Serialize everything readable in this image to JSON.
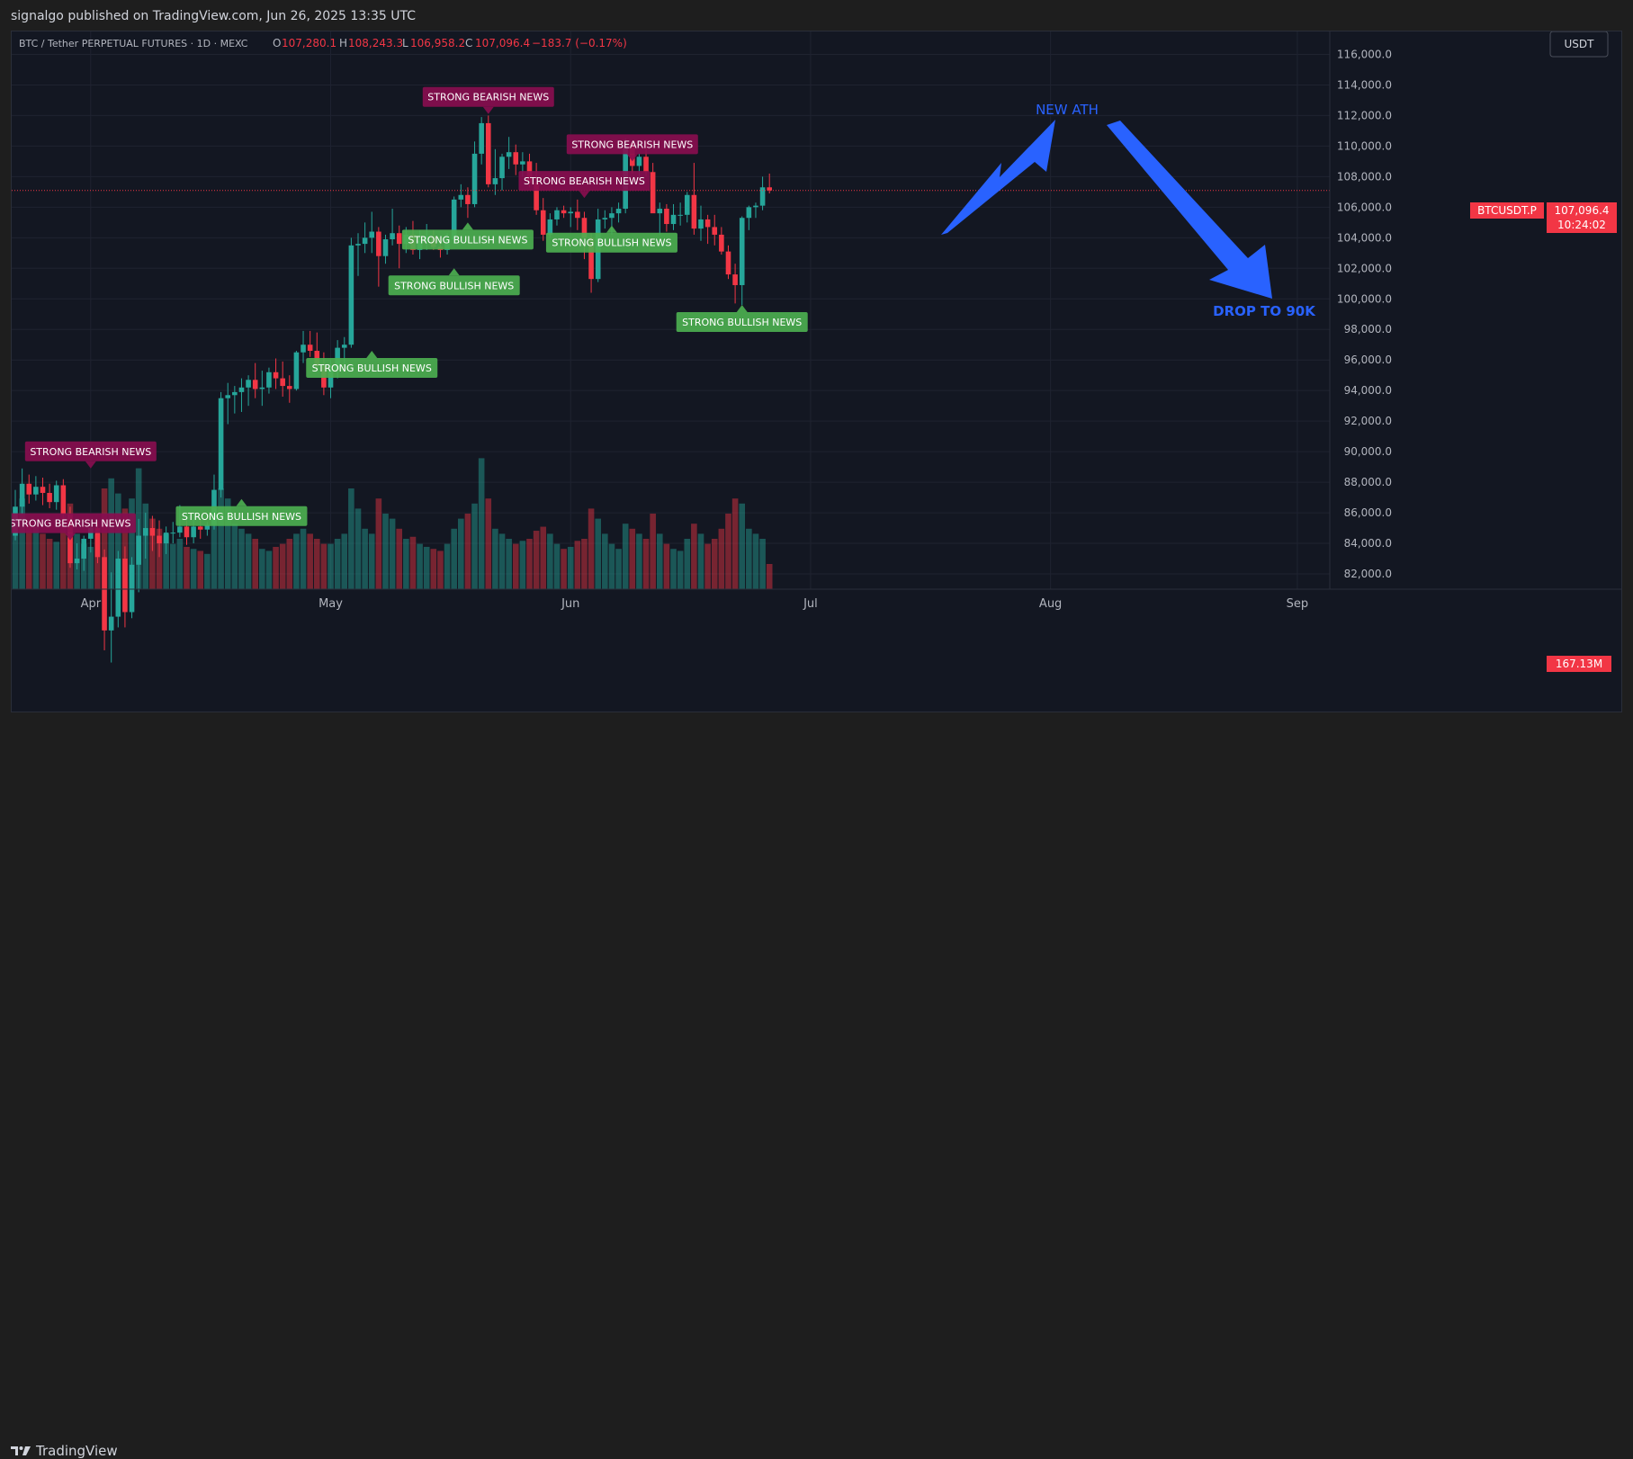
{
  "header": {
    "published": "signalgo published on TradingView.com, Jun 26, 2025 13:35 UTC"
  },
  "footer": {
    "brand": "TradingView"
  },
  "legend": {
    "symbol": "BTC / Tether PERPETUAL FUTURES · 1D · MEXC",
    "o_label": "O",
    "o": "107,280.1",
    "h_label": "H",
    "h": "108,243.3",
    "l_label": "L",
    "l": "106,958.2",
    "c_label": "C",
    "c": "107,096.4",
    "change": "−183.7 (−0.17%)"
  },
  "currency_button": "USDT",
  "price_tags": {
    "symbol": "BTCUSDT.P",
    "price": "107,096.4",
    "countdown": "10:24:02",
    "volume": "167.13M"
  },
  "annotations": {
    "ath": "NEW ATH",
    "drop": "DROP TO 90K"
  },
  "signal_bearish": "STRONG BEARISH NEWS",
  "signal_bullish": "STRONG BULLISH NEWS",
  "colors": {
    "up": "#26a69a",
    "down": "#f23645",
    "bg": "#131722",
    "arrow": "#2962ff",
    "label_bull": "#4caf50",
    "label_bear": "#880e4f"
  },
  "chart_data": {
    "type": "candlestick",
    "ylim": [
      81000,
      117500
    ],
    "y_ticks": [
      "82,000.0",
      "84,000.0",
      "86,000.0",
      "88,000.0",
      "90,000.0",
      "92,000.0",
      "94,000.0",
      "96,000.0",
      "98,000.0",
      "100,000.0",
      "102,000.0",
      "104,000.0",
      "106,000.0",
      "108,000.0",
      "110,000.0",
      "112,000.0",
      "114,000.0",
      "116,000.0"
    ],
    "x_ticks": [
      "Apr",
      "May",
      "Jun",
      "Jul",
      "Aug",
      "Sep"
    ],
    "last_price": 107096.4,
    "candles": [
      {
        "o": 84500,
        "h": 87500,
        "l": 84200,
        "c": 86400,
        "v": 0.7
      },
      {
        "o": 86400,
        "h": 88900,
        "l": 85900,
        "c": 87900,
        "v": 0.9
      },
      {
        "o": 87900,
        "h": 88500,
        "l": 86600,
        "c": 87200,
        "v": 0.65
      },
      {
        "o": 87200,
        "h": 88400,
        "l": 86800,
        "c": 87700,
        "v": 0.62
      },
      {
        "o": 87700,
        "h": 88300,
        "l": 86500,
        "c": 87300,
        "v": 0.55
      },
      {
        "o": 87300,
        "h": 87900,
        "l": 86300,
        "c": 86700,
        "v": 0.5
      },
      {
        "o": 86700,
        "h": 88100,
        "l": 86200,
        "c": 87800,
        "v": 0.47
      },
      {
        "o": 87800,
        "h": 88200,
        "l": 85500,
        "c": 85900,
        "v": 0.75
      },
      {
        "o": 85900,
        "h": 86400,
        "l": 82400,
        "c": 82700,
        "v": 0.85
      },
      {
        "o": 82700,
        "h": 84000,
        "l": 82300,
        "c": 83000,
        "v": 0.55
      },
      {
        "o": 83000,
        "h": 84500,
        "l": 82200,
        "c": 84300,
        "v": 0.45
      },
      {
        "o": 84300,
        "h": 85500,
        "l": 83400,
        "c": 85000,
        "v": 0.42
      },
      {
        "o": 85000,
        "h": 85400,
        "l": 82700,
        "c": 83100,
        "v": 0.55
      },
      {
        "o": 83100,
        "h": 83600,
        "l": 77000,
        "c": 78300,
        "v": 1.0
      },
      {
        "o": 78300,
        "h": 82100,
        "l": 76200,
        "c": 79200,
        "v": 1.1
      },
      {
        "o": 79200,
        "h": 83500,
        "l": 78500,
        "c": 83000,
        "v": 0.95
      },
      {
        "o": 83000,
        "h": 83800,
        "l": 78500,
        "c": 79500,
        "v": 0.8
      },
      {
        "o": 79500,
        "h": 83100,
        "l": 79100,
        "c": 82600,
        "v": 0.9
      },
      {
        "o": 82600,
        "h": 85600,
        "l": 80800,
        "c": 84500,
        "v": 1.2
      },
      {
        "o": 84500,
        "h": 86000,
        "l": 83000,
        "c": 85000,
        "v": 0.85
      },
      {
        "o": 85000,
        "h": 85800,
        "l": 83500,
        "c": 84500,
        "v": 0.7
      },
      {
        "o": 84500,
        "h": 85500,
        "l": 83100,
        "c": 84000,
        "v": 0.6
      },
      {
        "o": 84000,
        "h": 85100,
        "l": 83300,
        "c": 84700,
        "v": 0.55
      },
      {
        "o": 84700,
        "h": 85400,
        "l": 84000,
        "c": 84700,
        "v": 0.45
      },
      {
        "o": 84700,
        "h": 86500,
        "l": 84400,
        "c": 85100,
        "v": 0.5
      },
      {
        "o": 85100,
        "h": 85500,
        "l": 83900,
        "c": 84400,
        "v": 0.42
      },
      {
        "o": 84400,
        "h": 85600,
        "l": 84000,
        "c": 85100,
        "v": 0.4
      },
      {
        "o": 85100,
        "h": 85600,
        "l": 84300,
        "c": 84900,
        "v": 0.38
      },
      {
        "o": 84900,
        "h": 85400,
        "l": 84500,
        "c": 85200,
        "v": 0.35
      },
      {
        "o": 85200,
        "h": 88500,
        "l": 84900,
        "c": 87500,
        "v": 0.7
      },
      {
        "o": 87500,
        "h": 93900,
        "l": 87000,
        "c": 93500,
        "v": 1.0
      },
      {
        "o": 93500,
        "h": 94500,
        "l": 91800,
        "c": 93700,
        "v": 0.9
      },
      {
        "o": 93700,
        "h": 94300,
        "l": 92500,
        "c": 93900,
        "v": 0.65
      },
      {
        "o": 93900,
        "h": 94800,
        "l": 92600,
        "c": 94200,
        "v": 0.6
      },
      {
        "o": 94200,
        "h": 95000,
        "l": 93000,
        "c": 94700,
        "v": 0.55
      },
      {
        "o": 94700,
        "h": 95800,
        "l": 93500,
        "c": 94100,
        "v": 0.5
      },
      {
        "o": 94100,
        "h": 95300,
        "l": 93000,
        "c": 94200,
        "v": 0.4
      },
      {
        "o": 94200,
        "h": 95500,
        "l": 93800,
        "c": 95200,
        "v": 0.38
      },
      {
        "o": 95200,
        "h": 96100,
        "l": 94100,
        "c": 94800,
        "v": 0.42
      },
      {
        "o": 94800,
        "h": 95900,
        "l": 93600,
        "c": 94300,
        "v": 0.45
      },
      {
        "o": 94300,
        "h": 95000,
        "l": 93200,
        "c": 94100,
        "v": 0.5
      },
      {
        "o": 94100,
        "h": 96600,
        "l": 94000,
        "c": 96500,
        "v": 0.55
      },
      {
        "o": 96500,
        "h": 97900,
        "l": 95800,
        "c": 97000,
        "v": 0.6
      },
      {
        "o": 97000,
        "h": 97900,
        "l": 96200,
        "c": 96600,
        "v": 0.55
      },
      {
        "o": 96600,
        "h": 97800,
        "l": 95400,
        "c": 95600,
        "v": 0.5
      },
      {
        "o": 95600,
        "h": 96500,
        "l": 93700,
        "c": 94200,
        "v": 0.45
      },
      {
        "o": 94200,
        "h": 96000,
        "l": 93500,
        "c": 95400,
        "v": 0.45
      },
      {
        "o": 95400,
        "h": 97300,
        "l": 94800,
        "c": 96800,
        "v": 0.5
      },
      {
        "o": 96800,
        "h": 97500,
        "l": 95700,
        "c": 97000,
        "v": 0.55
      },
      {
        "o": 97000,
        "h": 104000,
        "l": 96800,
        "c": 103500,
        "v": 1.0
      },
      {
        "o": 103500,
        "h": 104300,
        "l": 101500,
        "c": 103600,
        "v": 0.8
      },
      {
        "o": 103600,
        "h": 105000,
        "l": 103000,
        "c": 104000,
        "v": 0.6
      },
      {
        "o": 104000,
        "h": 105700,
        "l": 103000,
        "c": 104400,
        "v": 0.55
      },
      {
        "o": 104400,
        "h": 104700,
        "l": 100800,
        "c": 102800,
        "v": 0.9
      },
      {
        "o": 102800,
        "h": 104200,
        "l": 102300,
        "c": 103900,
        "v": 0.75
      },
      {
        "o": 103900,
        "h": 105900,
        "l": 103500,
        "c": 104300,
        "v": 0.7
      },
      {
        "o": 104300,
        "h": 104800,
        "l": 102000,
        "c": 103600,
        "v": 0.6
      },
      {
        "o": 103600,
        "h": 104700,
        "l": 103000,
        "c": 104200,
        "v": 0.5
      },
      {
        "o": 104200,
        "h": 105100,
        "l": 102900,
        "c": 103200,
        "v": 0.52
      },
      {
        "o": 103200,
        "h": 104500,
        "l": 102600,
        "c": 103800,
        "v": 0.45
      },
      {
        "o": 103800,
        "h": 104900,
        "l": 103200,
        "c": 104100,
        "v": 0.42
      },
      {
        "o": 104100,
        "h": 104500,
        "l": 103200,
        "c": 103400,
        "v": 0.4
      },
      {
        "o": 103400,
        "h": 104100,
        "l": 102700,
        "c": 103200,
        "v": 0.38
      },
      {
        "o": 103200,
        "h": 104300,
        "l": 102900,
        "c": 103900,
        "v": 0.45
      },
      {
        "o": 103900,
        "h": 106700,
        "l": 103600,
        "c": 106500,
        "v": 0.6
      },
      {
        "o": 106500,
        "h": 107500,
        "l": 106000,
        "c": 106800,
        "v": 0.7
      },
      {
        "o": 106800,
        "h": 107300,
        "l": 105300,
        "c": 106200,
        "v": 0.75
      },
      {
        "o": 106200,
        "h": 110300,
        "l": 106000,
        "c": 109500,
        "v": 0.85
      },
      {
        "o": 109500,
        "h": 111900,
        "l": 108800,
        "c": 111500,
        "v": 1.3
      },
      {
        "o": 111500,
        "h": 112000,
        "l": 107300,
        "c": 107500,
        "v": 0.9
      },
      {
        "o": 107500,
        "h": 109800,
        "l": 106800,
        "c": 107900,
        "v": 0.6
      },
      {
        "o": 107900,
        "h": 109500,
        "l": 107100,
        "c": 109300,
        "v": 0.55
      },
      {
        "o": 109300,
        "h": 110600,
        "l": 108500,
        "c": 109600,
        "v": 0.5
      },
      {
        "o": 109600,
        "h": 110100,
        "l": 108100,
        "c": 108800,
        "v": 0.45
      },
      {
        "o": 108800,
        "h": 109600,
        "l": 108000,
        "c": 109000,
        "v": 0.48
      },
      {
        "o": 109000,
        "h": 109500,
        "l": 107300,
        "c": 107600,
        "v": 0.5
      },
      {
        "o": 107600,
        "h": 108900,
        "l": 105500,
        "c": 105800,
        "v": 0.58
      },
      {
        "o": 105800,
        "h": 106600,
        "l": 103800,
        "c": 104200,
        "v": 0.62
      },
      {
        "o": 104200,
        "h": 105600,
        "l": 104000,
        "c": 105200,
        "v": 0.55
      },
      {
        "o": 105200,
        "h": 106000,
        "l": 104800,
        "c": 105800,
        "v": 0.45
      },
      {
        "o": 105800,
        "h": 106100,
        "l": 105300,
        "c": 105600,
        "v": 0.4
      },
      {
        "o": 105600,
        "h": 106000,
        "l": 104700,
        "c": 105700,
        "v": 0.42
      },
      {
        "o": 105700,
        "h": 106500,
        "l": 104500,
        "c": 105300,
        "v": 0.48
      },
      {
        "o": 105300,
        "h": 105700,
        "l": 102600,
        "c": 104000,
        "v": 0.5
      },
      {
        "o": 104000,
        "h": 104300,
        "l": 100400,
        "c": 101300,
        "v": 0.8
      },
      {
        "o": 101300,
        "h": 105900,
        "l": 101100,
        "c": 105200,
        "v": 0.7
      },
      {
        "o": 105200,
        "h": 105800,
        "l": 104600,
        "c": 105300,
        "v": 0.55
      },
      {
        "o": 105300,
        "h": 106000,
        "l": 104200,
        "c": 105600,
        "v": 0.45
      },
      {
        "o": 105600,
        "h": 106300,
        "l": 105000,
        "c": 105900,
        "v": 0.4
      },
      {
        "o": 105900,
        "h": 110500,
        "l": 105600,
        "c": 110200,
        "v": 0.65
      },
      {
        "o": 110200,
        "h": 110300,
        "l": 108200,
        "c": 108700,
        "v": 0.6
      },
      {
        "o": 108700,
        "h": 109500,
        "l": 107800,
        "c": 109300,
        "v": 0.55
      },
      {
        "o": 109300,
        "h": 110400,
        "l": 108000,
        "c": 108300,
        "v": 0.5
      },
      {
        "o": 108300,
        "h": 108900,
        "l": 105700,
        "c": 105600,
        "v": 0.75
      },
      {
        "o": 105600,
        "h": 106300,
        "l": 104200,
        "c": 105900,
        "v": 0.55
      },
      {
        "o": 105900,
        "h": 106200,
        "l": 104400,
        "c": 104900,
        "v": 0.45
      },
      {
        "o": 104900,
        "h": 106200,
        "l": 104500,
        "c": 105500,
        "v": 0.4
      },
      {
        "o": 105500,
        "h": 106300,
        "l": 104800,
        "c": 105500,
        "v": 0.38
      },
      {
        "o": 105500,
        "h": 107000,
        "l": 105000,
        "c": 106800,
        "v": 0.5
      },
      {
        "o": 106800,
        "h": 108900,
        "l": 104200,
        "c": 104600,
        "v": 0.65
      },
      {
        "o": 104600,
        "h": 106100,
        "l": 103800,
        "c": 105200,
        "v": 0.55
      },
      {
        "o": 105200,
        "h": 105500,
        "l": 103600,
        "c": 104700,
        "v": 0.45
      },
      {
        "o": 104700,
        "h": 105500,
        "l": 103500,
        "c": 104200,
        "v": 0.5
      },
      {
        "o": 104200,
        "h": 104700,
        "l": 102900,
        "c": 103100,
        "v": 0.6
      },
      {
        "o": 103100,
        "h": 103500,
        "l": 101300,
        "c": 101600,
        "v": 0.75
      },
      {
        "o": 101600,
        "h": 102300,
        "l": 99700,
        "c": 100900,
        "v": 0.9
      },
      {
        "o": 100900,
        "h": 105400,
        "l": 99600,
        "c": 105300,
        "v": 0.85
      },
      {
        "o": 105300,
        "h": 106100,
        "l": 104500,
        "c": 106000,
        "v": 0.6
      },
      {
        "o": 106000,
        "h": 106300,
        "l": 105300,
        "c": 106100,
        "v": 0.55
      },
      {
        "o": 106100,
        "h": 108000,
        "l": 105800,
        "c": 107300,
        "v": 0.5
      },
      {
        "o": 107300,
        "h": 108200,
        "l": 106900,
        "c": 107096,
        "v": 0.25
      }
    ],
    "signals": [
      {
        "type": "bear",
        "i": 11,
        "price": 88900
      },
      {
        "type": "bear",
        "i": 8,
        "price": 84200
      },
      {
        "type": "bull",
        "i": 33,
        "price": 86900
      },
      {
        "type": "bull",
        "i": 52,
        "price": 96600
      },
      {
        "type": "bull",
        "i": 64,
        "price": 102000
      },
      {
        "type": "bull",
        "i": 66,
        "price": 105000
      },
      {
        "type": "bear",
        "i": 69,
        "price": 112100
      },
      {
        "type": "bear",
        "i": 83,
        "price": 106600
      },
      {
        "type": "bear",
        "i": 90,
        "price": 109000
      },
      {
        "type": "bull",
        "i": 87,
        "price": 104800
      },
      {
        "type": "bull",
        "i": 106,
        "price": 99600
      }
    ]
  }
}
